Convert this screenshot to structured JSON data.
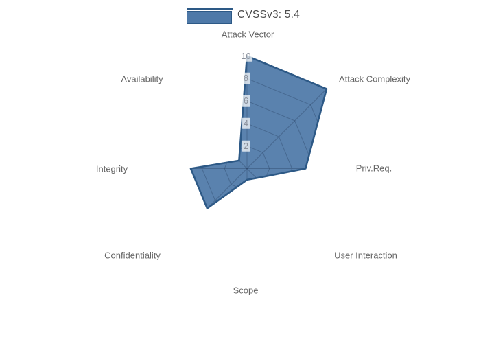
{
  "legend": {
    "label": "CVSSv3: 5.4",
    "swatch_fill": "#4e79a8",
    "swatch_border": "#2d5986"
  },
  "chart_data": {
    "type": "radar",
    "title": "",
    "categories": [
      "Attack Vector",
      "Attack Complexity",
      "Priv.Req.",
      "User Interaction",
      "Scope",
      "Confidentiality",
      "Integrity",
      "Availability"
    ],
    "series": [
      {
        "name": "CVSSv3: 5.4",
        "values": [
          10,
          10,
          5.2,
          1.2,
          1,
          5,
          5,
          1
        ]
      }
    ],
    "rlim": [
      0,
      10
    ],
    "tick_values": [
      2,
      4,
      6,
      8,
      10
    ],
    "start_angle_deg": 90,
    "direction": "clockwise",
    "grid": "web-clipped-to-series",
    "legend_position": "top-center",
    "colors": {
      "fill": "#4e79a8",
      "fill_opacity": 0.93,
      "stroke": "#2d5986",
      "grid_line": "rgba(25,45,75,0.30)",
      "axis_label": "#666666",
      "tick_label": "#8a909b",
      "tick_bg": "rgba(255,255,255,0.72)",
      "legend_text": "#4d4d4d"
    }
  }
}
